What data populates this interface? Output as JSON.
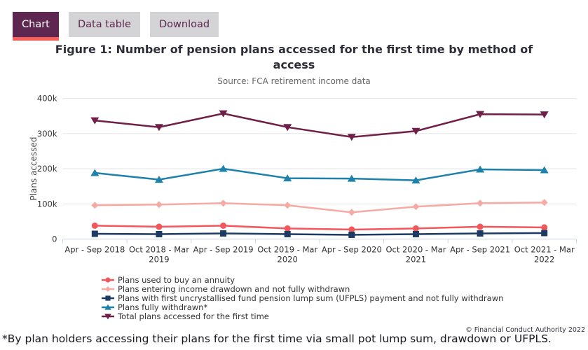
{
  "tabs": [
    {
      "label": "Chart",
      "active": true
    },
    {
      "label": "Data table",
      "active": false
    },
    {
      "label": "Download",
      "active": false
    }
  ],
  "title": "Figure 1: Number of pension plans accessed for the first time by method of access",
  "subtitle": "Source: FCA retirement income data",
  "footnote": "*By plan holders accessing their plans for the first time via small pot lump sum, drawdown or UFPLS.",
  "copyright": "© Financial Conduct Authority 2022",
  "colors": {
    "tab_active_bg": "#5e2751",
    "tab_underline": "#f95f59",
    "tab_inactive_bg": "#d4d4d6",
    "title_text": "#2e2e38",
    "subtitle_text": "#666666",
    "tick_text": "#333333",
    "gridline": "#e6e6e6",
    "axis_line": "#ccd6eb",
    "footnote_text": "#17171f"
  },
  "chart_data": {
    "type": "line",
    "title": "Figure 1: Number of pension plans accessed for the first time by method of access",
    "subtitle": "Source: FCA retirement income data",
    "xlabel": "",
    "ylabel": "Plans accessed",
    "unit": "plans, values in thousands",
    "ylim": [
      0,
      400
    ],
    "grid": true,
    "legend_position": "bottom-left",
    "yticks": [
      {
        "value": 0,
        "label": "0"
      },
      {
        "value": 100,
        "label": "100k"
      },
      {
        "value": 200,
        "label": "200k"
      },
      {
        "value": 300,
        "label": "300k"
      },
      {
        "value": 400,
        "label": "400k"
      }
    ],
    "categories": [
      "Apr - Sep 2018",
      "Oct 2018 - Mar\n2019",
      "Apr - Sep 2019",
      "Oct 2019 - Mar\n2020",
      "Apr - Sep 2020",
      "Oct 2020 - Mar\n2021",
      "Apr - Sep 2021",
      "Oct 2021 - Mar\n2022"
    ],
    "series": [
      {
        "id": "annuity",
        "name": "Plans used to buy an annuity",
        "color": "#f2575b",
        "marker": "circle",
        "values": [
          38,
          35,
          38,
          30,
          27,
          30,
          35,
          33
        ]
      },
      {
        "id": "drawdown",
        "name": "Plans entering income drawdown and not fully withdrawn",
        "color": "#f5aba4",
        "marker": "diamond",
        "values": [
          96,
          98,
          102,
          96,
          76,
          92,
          102,
          104
        ]
      },
      {
        "id": "ufpls",
        "name": "Plans with first uncrystallised fund pension lump sum (UFPLS) payment and not fully withdrawn",
        "color": "#1b3a64",
        "marker": "square",
        "values": [
          15,
          14,
          16,
          14,
          12,
          14,
          16,
          17
        ]
      },
      {
        "id": "fully-withdrawn",
        "name": "Plans fully withdrawn*",
        "color": "#1e81a9",
        "marker": "triangle-up",
        "values": [
          188,
          169,
          200,
          173,
          172,
          167,
          198,
          196
        ]
      },
      {
        "id": "total",
        "name": "Total plans accessed for the first time",
        "color": "#702048",
        "marker": "triangle-down",
        "values": [
          337,
          318,
          357,
          318,
          290,
          307,
          355,
          354
        ]
      }
    ]
  }
}
